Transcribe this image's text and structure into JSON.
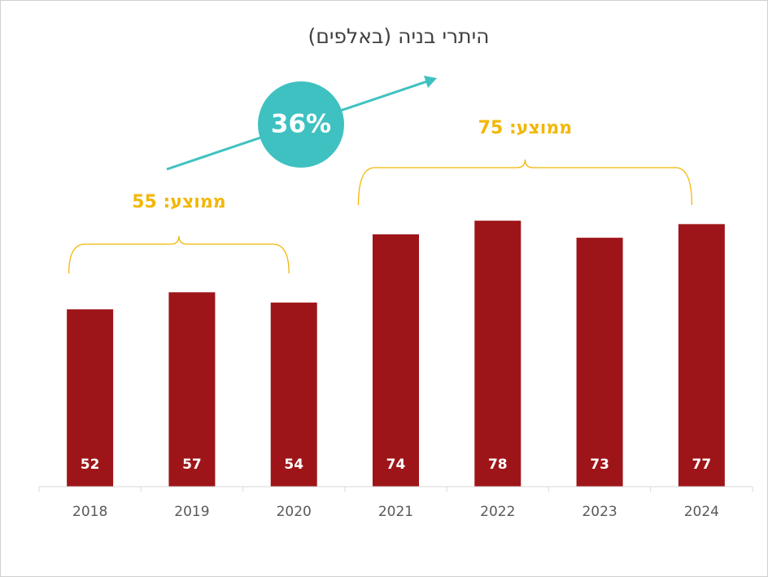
{
  "chart_data": {
    "type": "bar",
    "title": "היתרי בניה (באלפים)",
    "categories": [
      "2018",
      "2019",
      "2020",
      "2021",
      "2022",
      "2023",
      "2024"
    ],
    "values": [
      52,
      57,
      54,
      74,
      78,
      73,
      77
    ],
    "color": "#9e1519",
    "ylim": [
      0,
      100
    ],
    "annotations": [
      {
        "text": "ממוצע: 55"
      },
      {
        "text": "ממוצע: 75"
      },
      {
        "text": "36%"
      }
    ]
  }
}
